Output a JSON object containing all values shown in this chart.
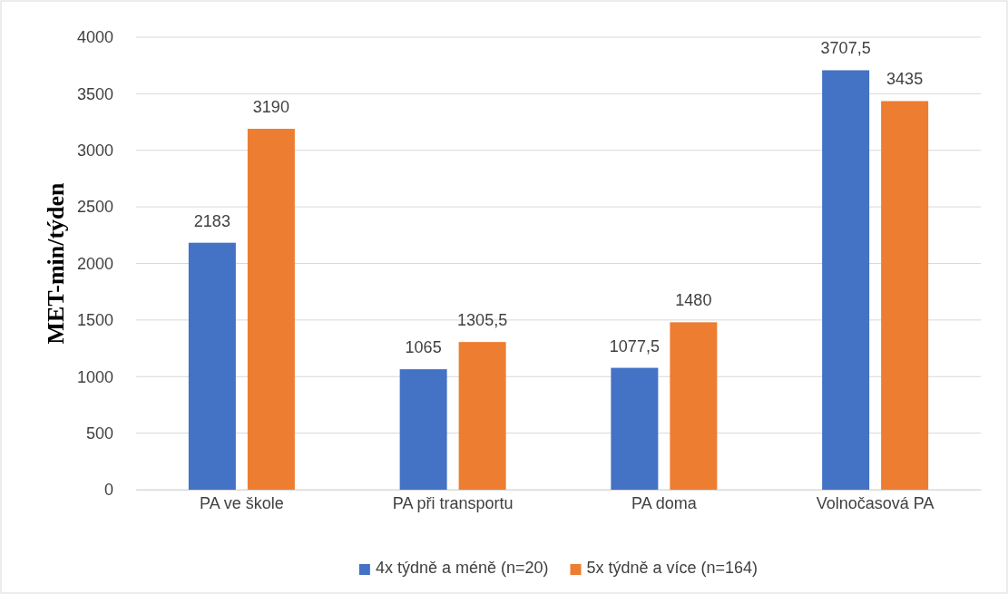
{
  "chart_data": {
    "type": "bar",
    "ylabel": "MET-min/týden",
    "categories": [
      "PA ve škole",
      "PA při transportu",
      "PA doma",
      "Volnočasová PA"
    ],
    "series": [
      {
        "name": "4x týdně a méně (n=20)",
        "color": "#4472c4",
        "values": [
          2183,
          1065,
          1077.5,
          3707.5
        ],
        "value_labels": [
          "2183",
          "1065",
          "1077,5",
          "3707,5"
        ]
      },
      {
        "name": "5x týdně a více (n=164)",
        "color": "#ed7d31",
        "values": [
          3190,
          1305.5,
          1480,
          3435
        ],
        "value_labels": [
          "3190",
          "1305,5",
          "1480",
          "3435"
        ]
      }
    ],
    "ylim": [
      0,
      4000
    ],
    "yticks": [
      0,
      500,
      1000,
      1500,
      2000,
      2500,
      3000,
      3500,
      4000
    ],
    "grid": "y",
    "legend": "bottom"
  }
}
